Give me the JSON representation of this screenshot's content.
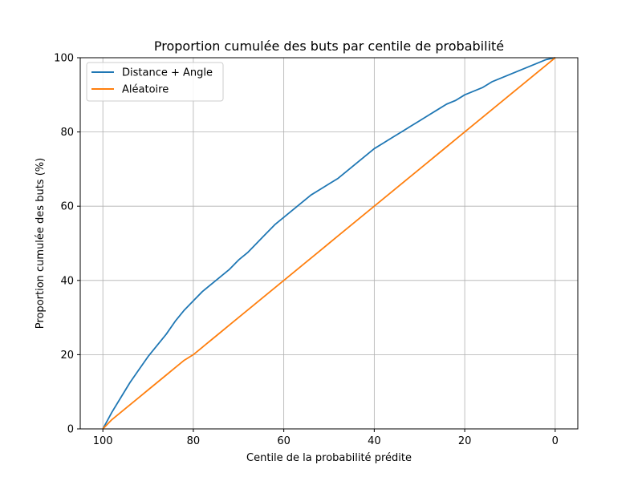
{
  "chart_data": {
    "type": "line",
    "title": "Proportion cumulée des buts par centile de probabilité",
    "xlabel": "Centile de la probabilité prédite",
    "ylabel": "Proportion cumulée des buts (%)",
    "xlim": [
      105,
      -5
    ],
    "ylim": [
      0,
      100
    ],
    "x_inverted": true,
    "xticks": [
      100,
      80,
      60,
      40,
      20,
      0
    ],
    "yticks": [
      0,
      20,
      40,
      60,
      80,
      100
    ],
    "grid": true,
    "legend_position": "top-left",
    "series": [
      {
        "name": "Distance + Angle",
        "color": "#1f77b4",
        "x": [
          100,
          98,
          96,
          94,
          92,
          90,
          88,
          86,
          84,
          82,
          80,
          78,
          76,
          74,
          72,
          70,
          68,
          66,
          64,
          62,
          60,
          58,
          56,
          54,
          52,
          50,
          48,
          46,
          44,
          42,
          40,
          38,
          36,
          34,
          32,
          30,
          28,
          26,
          24,
          22,
          20,
          18,
          16,
          14,
          12,
          10,
          8,
          6,
          4,
          2,
          0
        ],
        "y": [
          0,
          4.5,
          8.5,
          12.5,
          16,
          19.5,
          22.5,
          25.5,
          29,
          32,
          34.5,
          37,
          39,
          41,
          43,
          45.5,
          47.5,
          50,
          52.5,
          55,
          57,
          59,
          61,
          63,
          64.5,
          66,
          67.5,
          69.5,
          71.5,
          73.5,
          75.5,
          77,
          78.5,
          80,
          81.5,
          83,
          84.5,
          86,
          87.5,
          88.5,
          90,
          91,
          92,
          93.5,
          94.5,
          95.5,
          96.5,
          97.5,
          98.5,
          99.5,
          100
        ]
      },
      {
        "name": "Aléatoire",
        "color": "#ff7f0e",
        "x": [
          100,
          98,
          96,
          94,
          92,
          90,
          88,
          86,
          84,
          82,
          80,
          78,
          76,
          74,
          72,
          70,
          68,
          66,
          64,
          62,
          60,
          58,
          56,
          54,
          52,
          50,
          48,
          46,
          44,
          42,
          40,
          38,
          36,
          34,
          32,
          30,
          28,
          26,
          24,
          22,
          20,
          18,
          16,
          14,
          12,
          10,
          8,
          6,
          4,
          2,
          0
        ],
        "y": [
          0,
          2.5,
          4.5,
          6.5,
          8.5,
          10.5,
          12.5,
          14.5,
          16.5,
          18.5,
          20,
          22,
          24,
          26,
          28,
          30,
          32,
          34,
          36,
          38,
          40,
          42,
          44,
          46,
          48,
          50,
          52,
          54,
          56,
          58,
          60,
          62,
          64,
          66,
          68,
          70,
          72,
          74,
          76,
          78,
          80,
          82,
          84,
          86,
          88,
          90,
          92,
          94,
          96,
          98,
          100
        ]
      }
    ]
  }
}
